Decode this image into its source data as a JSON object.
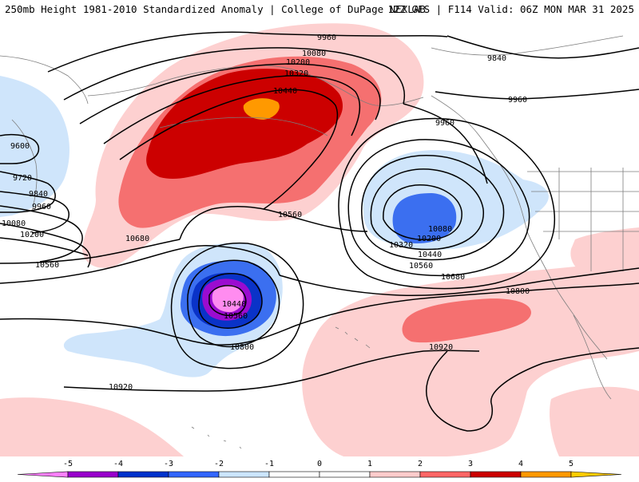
{
  "header": {
    "left_title": "250mb Height 1981-2010 Standardized Anomaly | College of DuPage NEXLAB",
    "right_title": "12Z GFS | F114 Valid: 06Z MON MAR 31 2025"
  },
  "contour_labels": {
    "c9960_a": "9960",
    "c9840_a": "9840",
    "c9960_b": "9960",
    "c10080_a": "10080",
    "c10200_a": "10200",
    "c10320_a": "10320",
    "c10440_a": "10440",
    "c9960_c": "9960",
    "c9600": "9600",
    "c9720": "9720",
    "c9840_b": "9840",
    "c9960_d": "9960",
    "c10080_b": "10080",
    "c10200_b": "10200",
    "c10560_a": "10560",
    "c10560_b": "10560",
    "c10680_a": "10680",
    "c10080_c": "10080",
    "c10200_c": "10200",
    "c10320_b": "10320",
    "c10440_b": "10440",
    "c10560_c": "10560",
    "c10680_b": "10680",
    "c10800_a": "10800",
    "c10440_c": "10440",
    "c10560_d": "10560",
    "c10800_b": "10800",
    "c10920_a": "10920",
    "c10920_b": "10920"
  },
  "legend": {
    "ticks": [
      "-5",
      "-4",
      "-3",
      "-2",
      "-1",
      "0",
      "1",
      "2",
      "3",
      "4",
      "5"
    ],
    "colors": [
      "#ff80ff",
      "#9900cc",
      "#0033cc",
      "#3366ff",
      "#cce6ff",
      "#ffffff",
      "#ffffff",
      "#ffcccc",
      "#ff6666",
      "#cc0000",
      "#ff9900",
      "#ffcc00"
    ]
  },
  "colors": {
    "neg1": "#cfe5fb",
    "neg2": "#3b6ff0",
    "neg3": "#0a33c8",
    "neg4": "#9b0cd0",
    "neg5": "#ff8cf0",
    "pos1": "#fdd0d0",
    "pos2": "#f57070",
    "pos3": "#cc0000",
    "pos4": "#ff9900"
  }
}
